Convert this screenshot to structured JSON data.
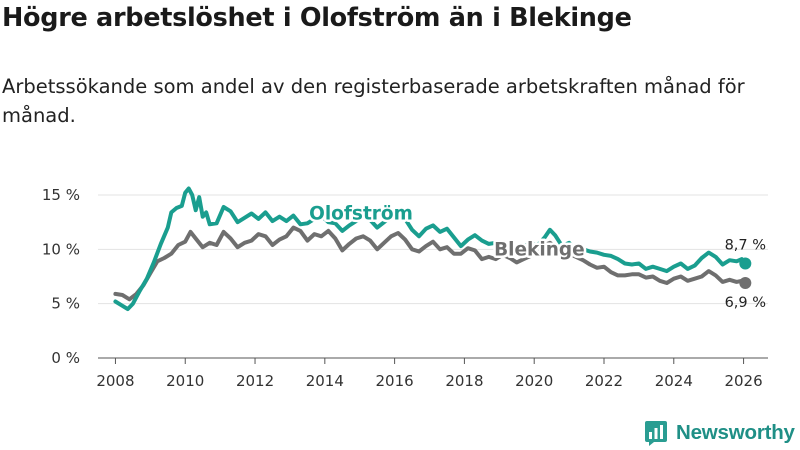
{
  "header": {
    "title": "Högre arbetslöshet i Olofström än i Blekinge",
    "subtitle": "Arbetssökande som andel av den registerbaserade arbetskraften månad för månad."
  },
  "brand": {
    "name": "Newsworthy",
    "color": "#2a9d92"
  },
  "chart_data": {
    "type": "line",
    "title": "Högre arbetslöshet i Olofström än i Blekinge",
    "xlabel": "",
    "ylabel": "",
    "xlim": [
      2007.5,
      2026.7
    ],
    "ylim": [
      0,
      15
    ],
    "x_ticks": [
      2008,
      2010,
      2012,
      2014,
      2016,
      2018,
      2020,
      2022,
      2024,
      2026
    ],
    "x_tick_labels": [
      "2008",
      "2010",
      "2012",
      "2014",
      "2016",
      "2018",
      "2020",
      "2022",
      "2024",
      "2026"
    ],
    "y_ticks": [
      0,
      5,
      10,
      15
    ],
    "y_tick_labels": [
      "0 %",
      "5 %",
      "10 %",
      "15 %"
    ],
    "grid": true,
    "series": [
      {
        "name": "Olofström",
        "label": "Olofström",
        "color": "#1a9e8f",
        "end_value_label": "8,7 %",
        "points": [
          [
            2008.0,
            5.2
          ],
          [
            2008.2,
            4.8
          ],
          [
            2008.35,
            4.5
          ],
          [
            2008.5,
            5.0
          ],
          [
            2008.7,
            6.2
          ],
          [
            2008.9,
            7.3
          ],
          [
            2009.1,
            8.8
          ],
          [
            2009.3,
            10.5
          ],
          [
            2009.5,
            12.0
          ],
          [
            2009.6,
            13.4
          ],
          [
            2009.75,
            13.8
          ],
          [
            2009.9,
            14.0
          ],
          [
            2010.0,
            15.2
          ],
          [
            2010.1,
            15.6
          ],
          [
            2010.2,
            15.0
          ],
          [
            2010.3,
            13.6
          ],
          [
            2010.4,
            14.8
          ],
          [
            2010.5,
            13.0
          ],
          [
            2010.6,
            13.4
          ],
          [
            2010.7,
            12.3
          ],
          [
            2010.9,
            12.4
          ],
          [
            2011.1,
            13.9
          ],
          [
            2011.3,
            13.5
          ],
          [
            2011.5,
            12.5
          ],
          [
            2011.7,
            12.9
          ],
          [
            2011.9,
            13.3
          ],
          [
            2012.1,
            12.8
          ],
          [
            2012.3,
            13.4
          ],
          [
            2012.5,
            12.6
          ],
          [
            2012.7,
            13.0
          ],
          [
            2012.9,
            12.6
          ],
          [
            2013.1,
            13.1
          ],
          [
            2013.3,
            12.3
          ],
          [
            2013.5,
            12.4
          ],
          [
            2013.7,
            12.8
          ],
          [
            2013.9,
            13.1
          ],
          [
            2014.1,
            12.5
          ],
          [
            2014.3,
            12.4
          ],
          [
            2014.5,
            11.7
          ],
          [
            2014.7,
            12.2
          ],
          [
            2014.9,
            12.6
          ],
          [
            2015.1,
            13.0
          ],
          [
            2015.3,
            12.7
          ],
          [
            2015.5,
            12.0
          ],
          [
            2015.7,
            12.5
          ],
          [
            2015.9,
            13.0
          ],
          [
            2016.1,
            13.3
          ],
          [
            2016.3,
            12.8
          ],
          [
            2016.5,
            11.8
          ],
          [
            2016.7,
            11.2
          ],
          [
            2016.9,
            11.9
          ],
          [
            2017.1,
            12.2
          ],
          [
            2017.3,
            11.6
          ],
          [
            2017.5,
            11.9
          ],
          [
            2017.7,
            11.1
          ],
          [
            2017.9,
            10.3
          ],
          [
            2018.1,
            10.9
          ],
          [
            2018.3,
            11.3
          ],
          [
            2018.5,
            10.8
          ],
          [
            2018.7,
            10.5
          ],
          [
            2018.9,
            10.6
          ],
          [
            2019.1,
            10.2
          ],
          [
            2019.3,
            10.4
          ],
          [
            2019.5,
            10.0
          ],
          [
            2019.7,
            10.3
          ],
          [
            2019.9,
            10.5
          ],
          [
            2020.1,
            10.4
          ],
          [
            2020.3,
            11.1
          ],
          [
            2020.45,
            11.8
          ],
          [
            2020.6,
            11.3
          ],
          [
            2020.8,
            10.3
          ],
          [
            2021.0,
            10.6
          ],
          [
            2021.2,
            9.8
          ],
          [
            2021.4,
            10.0
          ],
          [
            2021.6,
            9.8
          ],
          [
            2021.8,
            9.7
          ],
          [
            2022.0,
            9.5
          ],
          [
            2022.2,
            9.4
          ],
          [
            2022.4,
            9.1
          ],
          [
            2022.6,
            8.7
          ],
          [
            2022.8,
            8.6
          ],
          [
            2023.0,
            8.7
          ],
          [
            2023.2,
            8.2
          ],
          [
            2023.4,
            8.4
          ],
          [
            2023.6,
            8.2
          ],
          [
            2023.8,
            8.0
          ],
          [
            2024.0,
            8.4
          ],
          [
            2024.2,
            8.7
          ],
          [
            2024.4,
            8.2
          ],
          [
            2024.6,
            8.5
          ],
          [
            2024.8,
            9.2
          ],
          [
            2025.0,
            9.7
          ],
          [
            2025.2,
            9.3
          ],
          [
            2025.4,
            8.6
          ],
          [
            2025.6,
            9.0
          ],
          [
            2025.8,
            8.9
          ],
          [
            2025.95,
            9.1
          ],
          [
            2026.05,
            8.7
          ]
        ]
      },
      {
        "name": "Blekinge",
        "label": "Blekinge",
        "color": "#6f6f6f",
        "end_value_label": "6,9 %",
        "points": [
          [
            2008.0,
            5.9
          ],
          [
            2008.2,
            5.8
          ],
          [
            2008.4,
            5.4
          ],
          [
            2008.6,
            5.9
          ],
          [
            2008.8,
            6.7
          ],
          [
            2009.0,
            7.8
          ],
          [
            2009.2,
            8.9
          ],
          [
            2009.4,
            9.2
          ],
          [
            2009.6,
            9.6
          ],
          [
            2009.8,
            10.4
          ],
          [
            2010.0,
            10.7
          ],
          [
            2010.15,
            11.6
          ],
          [
            2010.3,
            11.0
          ],
          [
            2010.5,
            10.2
          ],
          [
            2010.7,
            10.6
          ],
          [
            2010.9,
            10.4
          ],
          [
            2011.1,
            11.6
          ],
          [
            2011.3,
            11.0
          ],
          [
            2011.5,
            10.2
          ],
          [
            2011.7,
            10.6
          ],
          [
            2011.9,
            10.8
          ],
          [
            2012.1,
            11.4
          ],
          [
            2012.3,
            11.2
          ],
          [
            2012.5,
            10.4
          ],
          [
            2012.7,
            10.9
          ],
          [
            2012.9,
            11.2
          ],
          [
            2013.1,
            12.0
          ],
          [
            2013.3,
            11.7
          ],
          [
            2013.5,
            10.8
          ],
          [
            2013.7,
            11.4
          ],
          [
            2013.9,
            11.2
          ],
          [
            2014.1,
            11.7
          ],
          [
            2014.3,
            11.0
          ],
          [
            2014.5,
            9.9
          ],
          [
            2014.7,
            10.5
          ],
          [
            2014.9,
            11.0
          ],
          [
            2015.1,
            11.2
          ],
          [
            2015.3,
            10.8
          ],
          [
            2015.5,
            10.0
          ],
          [
            2015.7,
            10.6
          ],
          [
            2015.9,
            11.2
          ],
          [
            2016.1,
            11.5
          ],
          [
            2016.3,
            10.9
          ],
          [
            2016.5,
            10.0
          ],
          [
            2016.7,
            9.8
          ],
          [
            2016.9,
            10.3
          ],
          [
            2017.1,
            10.7
          ],
          [
            2017.3,
            10.0
          ],
          [
            2017.5,
            10.2
          ],
          [
            2017.7,
            9.6
          ],
          [
            2017.9,
            9.6
          ],
          [
            2018.1,
            10.1
          ],
          [
            2018.3,
            9.9
          ],
          [
            2018.5,
            9.1
          ],
          [
            2018.7,
            9.3
          ],
          [
            2018.9,
            9.1
          ],
          [
            2019.1,
            9.5
          ],
          [
            2019.3,
            9.2
          ],
          [
            2019.5,
            8.8
          ],
          [
            2019.7,
            9.1
          ],
          [
            2019.9,
            9.4
          ],
          [
            2020.1,
            9.6
          ],
          [
            2020.3,
            10.4
          ],
          [
            2020.45,
            10.6
          ],
          [
            2020.6,
            10.3
          ],
          [
            2020.8,
            9.7
          ],
          [
            2021.0,
            9.6
          ],
          [
            2021.2,
            9.3
          ],
          [
            2021.4,
            9.0
          ],
          [
            2021.6,
            8.6
          ],
          [
            2021.8,
            8.3
          ],
          [
            2022.0,
            8.4
          ],
          [
            2022.2,
            7.9
          ],
          [
            2022.4,
            7.6
          ],
          [
            2022.6,
            7.6
          ],
          [
            2022.8,
            7.7
          ],
          [
            2023.0,
            7.7
          ],
          [
            2023.2,
            7.4
          ],
          [
            2023.4,
            7.5
          ],
          [
            2023.6,
            7.1
          ],
          [
            2023.8,
            6.9
          ],
          [
            2024.0,
            7.3
          ],
          [
            2024.2,
            7.5
          ],
          [
            2024.4,
            7.1
          ],
          [
            2024.6,
            7.3
          ],
          [
            2024.8,
            7.5
          ],
          [
            2025.0,
            8.0
          ],
          [
            2025.2,
            7.6
          ],
          [
            2025.4,
            7.0
          ],
          [
            2025.6,
            7.2
          ],
          [
            2025.8,
            7.0
          ],
          [
            2025.95,
            7.1
          ],
          [
            2026.05,
            6.9
          ]
        ]
      }
    ]
  }
}
